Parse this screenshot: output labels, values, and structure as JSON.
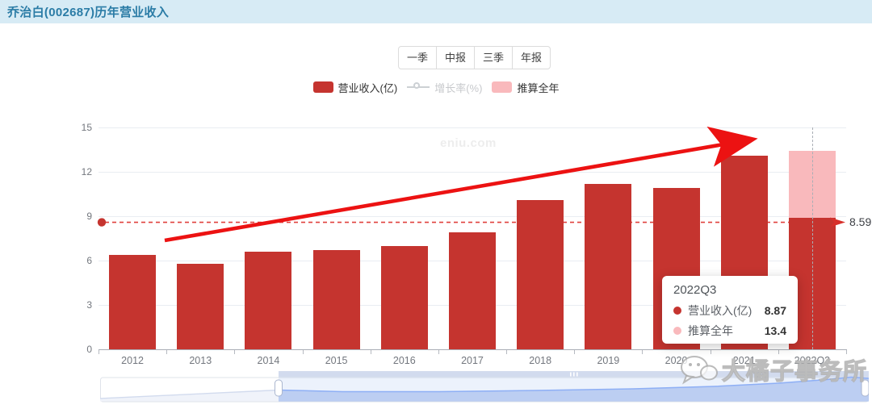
{
  "header": {
    "title": "乔治白(002687)历年营业收入"
  },
  "period_tabs": [
    {
      "label": "一季"
    },
    {
      "label": "中报"
    },
    {
      "label": "三季"
    },
    {
      "label": "年报"
    }
  ],
  "legend": {
    "items": [
      {
        "label": "营业收入(亿)",
        "marker": "rect",
        "color": "#c5342f",
        "active": true
      },
      {
        "label": "增长率(%)",
        "marker": "line-circle",
        "color": "#ccd0d4",
        "active": false
      },
      {
        "label": "推算全年",
        "marker": "rect",
        "color": "#f9b9bc",
        "active": true
      }
    ]
  },
  "watermarks": {
    "site": "eniu.com",
    "brand": "大橘子事务所"
  },
  "tooltip": {
    "title": "2022Q3",
    "rows": [
      {
        "label": "营业收入(亿)",
        "value": "8.87",
        "color": "#c5342f"
      },
      {
        "label": "推算全年",
        "value": "13.4",
        "color": "#f9b9bc"
      }
    ]
  },
  "chart_data": {
    "type": "bar",
    "title": "乔治白(002687)历年营业收入",
    "categories": [
      "2012",
      "2013",
      "2014",
      "2015",
      "2016",
      "2017",
      "2018",
      "2019",
      "2020",
      "2021",
      "2022Q3"
    ],
    "series": [
      {
        "name": "营业收入(亿)",
        "type": "bar",
        "color": "#c5342f",
        "values": [
          6.4,
          5.8,
          6.6,
          6.7,
          7.0,
          7.9,
          10.1,
          11.2,
          10.9,
          13.1,
          8.87
        ]
      },
      {
        "name": "推算全年",
        "type": "bar",
        "color": "#f9b9bc",
        "stacked_on": "营业收入(亿)",
        "values": [
          null,
          null,
          null,
          null,
          null,
          null,
          null,
          null,
          null,
          null,
          13.4
        ]
      },
      {
        "name": "增长率(%)",
        "type": "line",
        "disabled": true,
        "values": []
      }
    ],
    "ylim": [
      0,
      15
    ],
    "yticks": [
      0,
      3,
      6,
      9,
      12,
      15
    ],
    "grid": true,
    "legend_position": "top",
    "reference_line": {
      "value": 8.59,
      "label": "8.59"
    },
    "highlighted_category": "2022Q3"
  },
  "data_zoom": {
    "type": "slider",
    "window_start_percent": 23,
    "window_end_percent": 100
  }
}
